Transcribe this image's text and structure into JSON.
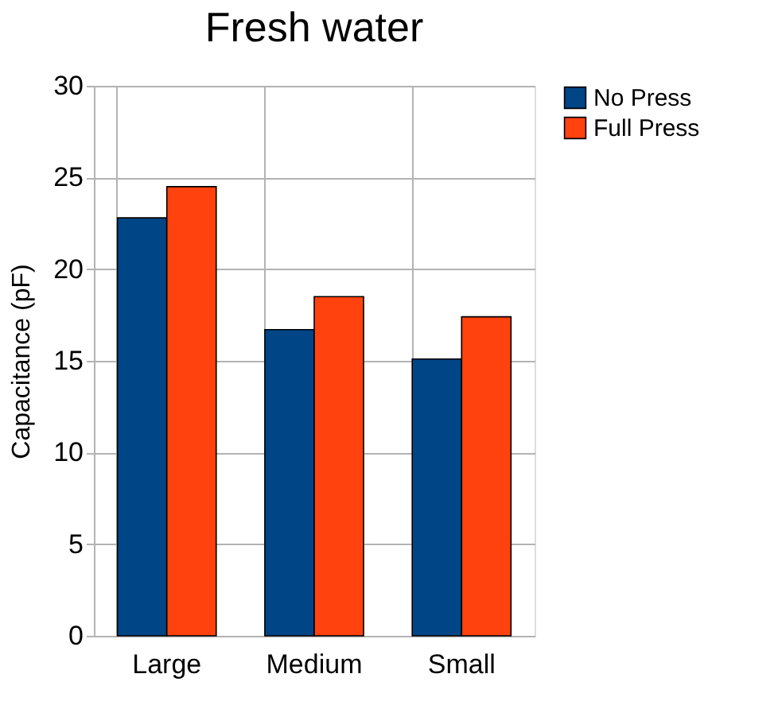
{
  "chart_data": {
    "type": "bar",
    "title": "Fresh water",
    "ylabel": "Capacitance (pF)",
    "categories": [
      "Large",
      "Medium",
      "Small"
    ],
    "series": [
      {
        "name": "No Press",
        "color": "#004586",
        "values": [
          22.8,
          16.7,
          15.1
        ]
      },
      {
        "name": "Full Press",
        "color": "#ff420e",
        "values": [
          24.5,
          18.5,
          17.4
        ]
      }
    ],
    "ylim": [
      0,
      30
    ],
    "yticks": [
      0,
      5,
      10,
      15,
      20,
      25,
      30
    ],
    "grid": true,
    "legend": "right"
  }
}
